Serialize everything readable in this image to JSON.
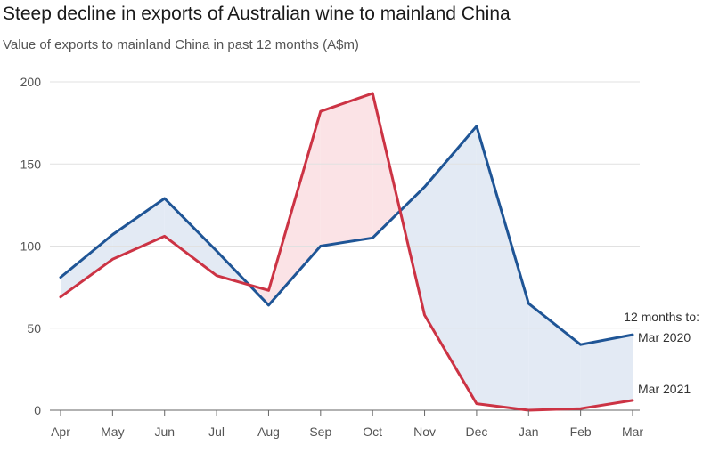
{
  "chart_data": {
    "type": "line",
    "title": "Steep decline in exports of Australian wine to mainland China",
    "subtitle": "Value of exports to mainland China in past 12 months (A$m)",
    "categories": [
      "Apr",
      "May",
      "Jun",
      "Jul",
      "Aug",
      "Sep",
      "Oct",
      "Nov",
      "Dec",
      "Jan",
      "Feb",
      "Mar"
    ],
    "ylim": [
      0,
      200
    ],
    "yticks": [
      "0",
      "50",
      "100",
      "150",
      "200"
    ],
    "grid": true,
    "legend_heading": "12 months to:",
    "series": [
      {
        "name": "Mar 2020",
        "color": "#1f5596",
        "values": [
          81,
          107,
          129,
          97,
          64,
          100,
          105,
          136,
          173,
          65,
          40,
          46
        ]
      },
      {
        "name": "Mar 2021",
        "color": "#cc3344",
        "values": [
          69,
          92,
          106,
          82,
          73,
          182,
          193,
          58,
          4,
          0,
          1,
          6
        ]
      }
    ],
    "fill_colors": {
      "series0_higher": "#e3eaf4",
      "series1_higher": "#fbe3e6"
    }
  }
}
